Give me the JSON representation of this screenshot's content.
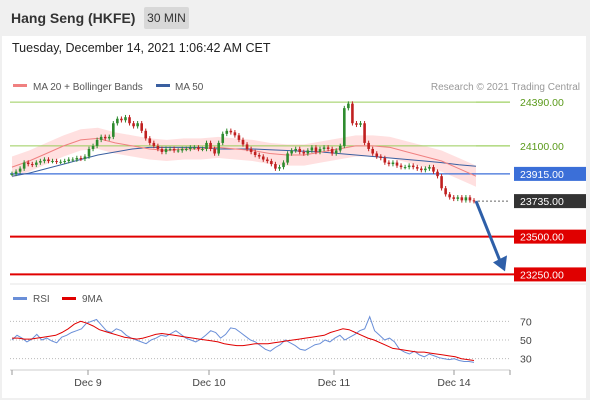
{
  "header": {
    "title": "Hang Seng (HKFE)",
    "interval": "30 MIN"
  },
  "timestamp": "Tuesday, December 14, 2021 1:06:42 AM CET",
  "legend": {
    "ma20_label": "MA 20 + Bollinger Bands",
    "ma50_label": "MA 50",
    "credit": "Research © 2021 Trading Central",
    "rsi_label": "RSI",
    "ma9_label": "9MA"
  },
  "colors": {
    "ma20": "#f08080",
    "ma50": "#3a5fa0",
    "bands": "#ffd6d6",
    "resistance": "#9acd5a",
    "pivot": "#3b6fd8",
    "support": "#e00000",
    "last": "#333333",
    "arrow": "#2e5fa8",
    "candle_up": "#2e8b2e",
    "candle_down": "#c02020"
  },
  "chart_data": [
    {
      "type": "line",
      "title": "",
      "ylim": [
        23180,
        24470
      ],
      "x_ticks": [
        "Dec 9",
        "Dec 10",
        "Dec 11",
        "Dec 14"
      ],
      "series": [
        {
          "name": "Price",
          "values": [
            23915,
            23930,
            23950,
            23990,
            23980,
            23975,
            23990,
            24000,
            24010,
            24000,
            24000,
            23995,
            23995,
            24000,
            24010,
            24010,
            24020,
            24015,
            24030,
            24080,
            24100,
            24140,
            24160,
            24150,
            24160,
            24250,
            24280,
            24270,
            24290,
            24250,
            24230,
            24250,
            24200,
            24150,
            24120,
            24100,
            24080,
            24060,
            24080,
            24080,
            24070,
            24070,
            24080,
            24080,
            24090,
            24090,
            24080,
            24080,
            24120,
            24080,
            24050,
            24120,
            24180,
            24200,
            24190,
            24170,
            24140,
            24110,
            24080,
            24060,
            24040,
            24030,
            24010,
            24000,
            23980,
            23950,
            23960,
            23990,
            24050,
            24070,
            24080,
            24060,
            24050,
            24070,
            24090,
            24060,
            24080,
            24090,
            24080,
            24050,
            24070,
            24100,
            24350,
            24380,
            24250,
            24240,
            24250,
            24120,
            24080,
            24050,
            24030,
            24020,
            23990,
            23980,
            23990,
            23970,
            23960,
            23960,
            23970,
            23960,
            23950,
            23940,
            23950,
            23960,
            23930,
            23900,
            23820,
            23780,
            23760,
            23750,
            23760,
            23740,
            23760,
            23740,
            23735
          ]
        },
        {
          "name": "MA 20",
          "values": [
            23960,
            24000,
            24050,
            24100,
            24140,
            24150,
            24120,
            24100,
            24080,
            24070,
            24080,
            24080,
            24090,
            24080,
            24070,
            24050,
            24040,
            24040,
            24060,
            24080,
            24100,
            24100,
            24090,
            24060,
            24030,
            24000,
            23950,
            23900
          ]
        },
        {
          "name": "MA 50",
          "values": [
            23900,
            23920,
            23950,
            23980,
            24010,
            24040,
            24060,
            24080,
            24090,
            24090,
            24090,
            24090,
            24080,
            24080,
            24080,
            24075,
            24070,
            24065,
            24060,
            24050,
            24040,
            24030,
            24020,
            24010,
            24000,
            23990,
            23975,
            23965
          ]
        }
      ],
      "levels": [
        {
          "label": "24390.00",
          "value": 24390,
          "kind": "resistance"
        },
        {
          "label": "24100.00",
          "value": 24100,
          "kind": "resistance"
        },
        {
          "label": "23915.00",
          "value": 23915,
          "kind": "pivot"
        },
        {
          "label": "23735.00",
          "value": 23735,
          "kind": "last"
        },
        {
          "label": "23500.00",
          "value": 23500,
          "kind": "support"
        },
        {
          "label": "23250.00",
          "value": 23250,
          "kind": "support"
        }
      ]
    },
    {
      "type": "line",
      "title": "",
      "ylim": [
        20,
        80
      ],
      "y_ticks": [
        70,
        50,
        30
      ],
      "series": [
        {
          "name": "RSI",
          "values": [
            50,
            55,
            52,
            48,
            51,
            56,
            50,
            52,
            49,
            47,
            53,
            55,
            58,
            60,
            62,
            68,
            70,
            72,
            66,
            60,
            58,
            62,
            60,
            55,
            52,
            50,
            48,
            46,
            50,
            52,
            55,
            54,
            57,
            60,
            56,
            52,
            50,
            48,
            51,
            55,
            60,
            58,
            52,
            56,
            63,
            62,
            58,
            54,
            50,
            48,
            44,
            40,
            38,
            42,
            45,
            50,
            47,
            44,
            40,
            39,
            42,
            45,
            46,
            50,
            48,
            52,
            55,
            50,
            53,
            56,
            60,
            62,
            75,
            60,
            55,
            50,
            52,
            48,
            40,
            37,
            35,
            38,
            34,
            32,
            35,
            33,
            31,
            30,
            29,
            30,
            28,
            27,
            27,
            26
          ]
        },
        {
          "name": "9MA",
          "values": [
            52,
            52,
            51,
            51,
            52,
            53,
            54,
            55,
            58,
            62,
            67,
            70,
            68,
            65,
            61,
            59,
            57,
            55,
            53,
            52,
            51,
            52,
            54,
            56,
            57,
            56,
            55,
            54,
            53,
            52,
            51,
            50,
            49,
            48,
            46,
            45,
            44,
            44,
            45,
            46,
            46,
            46,
            47,
            48,
            49,
            50,
            51,
            52,
            53,
            54,
            55,
            58,
            60,
            62,
            61,
            58,
            55,
            52,
            50,
            47,
            44,
            41,
            40,
            39,
            38,
            37,
            37,
            36,
            35,
            34,
            33,
            32,
            30,
            29,
            28
          ]
        }
      ]
    }
  ]
}
